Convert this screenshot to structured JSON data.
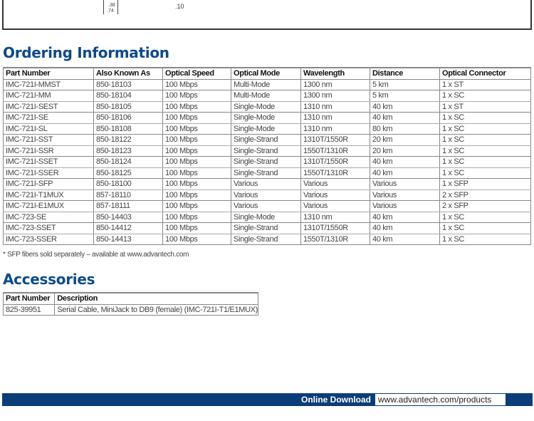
{
  "diagram": {
    "dims": [
      ".38",
      ".74",
      ".10"
    ]
  },
  "ordering": {
    "title": "Ordering Information",
    "headers": [
      "Part Number",
      "Also Known As",
      "Optical Speed",
      "Optical Mode",
      "Wavelength",
      "Distance",
      "Optical Connector"
    ],
    "rows": [
      [
        "IMC-721I-MMST",
        "850-18103",
        "100 Mbps",
        "Multi-Mode",
        "1300 nm",
        "5 km",
        "1 x ST"
      ],
      [
        "IMC-721I-MM",
        "850-18104",
        "100 Mbps",
        "Multi-Mode",
        "1300 nm",
        "5 km",
        "1 x SC"
      ],
      [
        "IMC-721I-SEST",
        "850-18105",
        "100 Mbps",
        "Single-Mode",
        "1310 nm",
        "40 km",
        "1 x ST"
      ],
      [
        "IMC-721I-SE",
        "850-18106",
        "100 Mbps",
        "Single-Mode",
        "1310 nm",
        "40 km",
        "1 x SC"
      ],
      [
        "IMC-721I-SL",
        "850-18108",
        "100 Mbps",
        "Single-Mode",
        "1310 nm",
        "80 km",
        "1 x SC"
      ],
      [
        "IMC-721I-SST",
        "850-18122",
        "100 Mbps",
        "Single-Strand",
        "1310T/1550R",
        "20 km",
        "1 x SC"
      ],
      [
        "IMC-721I-SSR",
        "850-18123",
        "100 Mbps",
        "Single-Strand",
        "1550T/1310R",
        "20 km",
        "1 x SC"
      ],
      [
        "IMC-721I-SSET",
        "850-18124",
        "100 Mbps",
        "Single-Strand",
        "1310T/1550R",
        "40 km",
        "1 x SC"
      ],
      [
        "IMC-721I-SSER",
        "850-18125",
        "100 Mbps",
        "Single-Strand",
        "1550T/1310R",
        "40 km",
        "1 x SC"
      ],
      [
        "IMC-721I-SFP",
        "850-18100",
        "100 Mbps",
        "Various",
        "Various",
        "Various",
        "1 x SFP"
      ],
      [
        "IMC-721I-T1MUX",
        "857-18110",
        "100 Mbps",
        "Various",
        "Various",
        "Various",
        "2 x SFP"
      ],
      [
        "IMC-721I-E1MUX",
        "857-18111",
        "100 Mbps",
        "Various",
        "Various",
        "Various",
        "2 x SFP"
      ],
      [
        "IMC-723-SE",
        "850-14403",
        "100 Mbps",
        "Single-Mode",
        "1310 nm",
        "40 km",
        "1 x SC"
      ],
      [
        "IMC-723-SSET",
        "850-14412",
        "100 Mbps",
        "Single-Strand",
        "1310T/1550R",
        "40 km",
        "1 x SC"
      ],
      [
        "IMC-723-SSER",
        "850-14413",
        "100 Mbps",
        "Single-Strand",
        "1550T/1310R",
        "40 km",
        "1 x SC"
      ]
    ],
    "note": "* SFP fibers sold separately – available at www.advantech.com"
  },
  "accessories": {
    "title": "Accessories",
    "headers": [
      "Part Number",
      "Description"
    ],
    "rows": [
      [
        "825-39951",
        "Serial Cable, MiniJack to DB9 (female) (IMC-721I-T1/E1MUX)"
      ]
    ]
  },
  "footer": {
    "label": "Online Download",
    "url": "www.advantech.com/products",
    "bar_color": "#0b3d79"
  }
}
